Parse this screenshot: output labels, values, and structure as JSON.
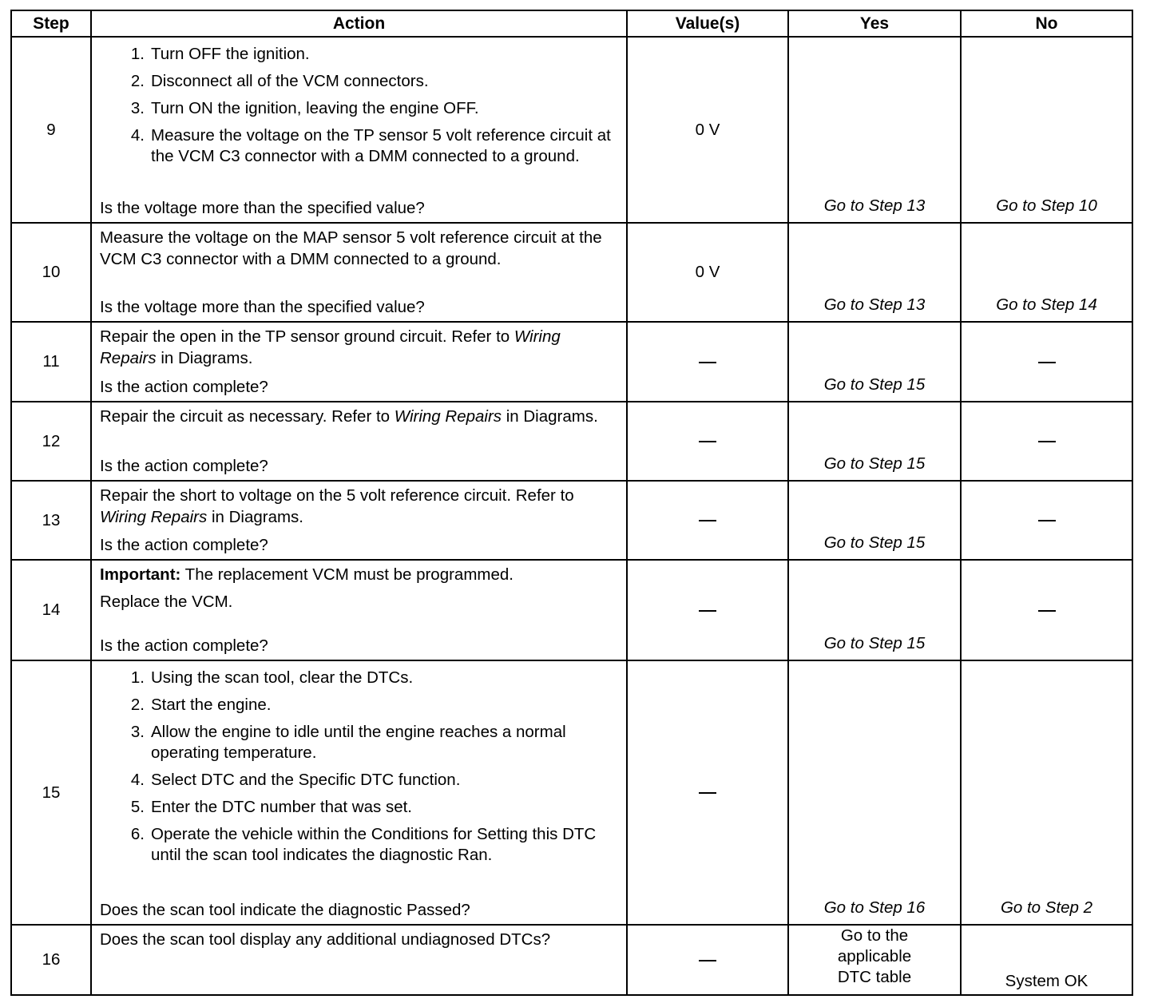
{
  "headers": {
    "step": "Step",
    "action": "Action",
    "values": "Value(s)",
    "yes": "Yes",
    "no": "No"
  },
  "rows": [
    {
      "step": "9",
      "intro": [],
      "steps": [
        "Turn OFF the ignition.",
        "Disconnect all of the VCM connectors.",
        "Turn ON the ignition, leaving the engine OFF.",
        "Measure the voltage on the TP sensor 5 volt reference circuit at the VCM C3 connector with a DMM connected to a ground."
      ],
      "question": "Is the voltage more than the specified value?",
      "value": "0 V",
      "yes": "Go to Step 13",
      "no": "Go to Step 10"
    },
    {
      "step": "10",
      "intro": [
        [
          {
            "t": "Measure the voltage on the MAP sensor 5 volt reference circuit at the VCM C3 connector with a DMM connected to a ground."
          }
        ]
      ],
      "steps": [],
      "question": "Is the voltage more than the specified value?",
      "value": "0 V",
      "yes": "Go to Step 13",
      "no": "Go to Step 14"
    },
    {
      "step": "11",
      "intro": [
        [
          {
            "t": "Repair the open in the TP sensor ground circuit. Refer to "
          },
          {
            "t": "Wiring Repairs",
            "i": true
          },
          {
            "t": " in Diagrams."
          }
        ]
      ],
      "steps": [],
      "question": "Is the action complete?",
      "value": "—",
      "yes": "Go to Step 15",
      "no": "—"
    },
    {
      "step": "12",
      "intro": [
        [
          {
            "t": "Repair the circuit as necessary. Refer to "
          },
          {
            "t": "Wiring Repairs",
            "i": true
          },
          {
            "t": " in Diagrams."
          }
        ]
      ],
      "steps": [],
      "question": "Is the action complete?",
      "value": "—",
      "yes": "Go to Step 15",
      "no": "—"
    },
    {
      "step": "13",
      "intro": [
        [
          {
            "t": "Repair the short to voltage on the 5 volt reference circuit. Refer to "
          },
          {
            "t": "Wiring Repairs",
            "i": true
          },
          {
            "t": " in Diagrams."
          }
        ]
      ],
      "steps": [],
      "question": "Is the action complete?",
      "value": "—",
      "yes": "Go to Step 15",
      "no": "—"
    },
    {
      "step": "14",
      "intro": [
        [
          {
            "t": "Important:",
            "b": true
          },
          {
            "t": " The replacement VCM must be programmed."
          }
        ],
        [
          {
            "t": "Replace the VCM."
          }
        ]
      ],
      "steps": [],
      "question": "Is the action complete?",
      "value": "—",
      "yes": "Go to Step 15",
      "no": "—"
    },
    {
      "step": "15",
      "intro": [],
      "steps": [
        "Using the scan tool, clear the DTCs.",
        "Start the engine.",
        "Allow the engine to idle until the engine reaches a normal operating temperature.",
        "Select DTC and the Specific DTC function.",
        "Enter the DTC number that was set.",
        "Operate the vehicle within the Conditions for Setting this DTC until the scan tool indicates the diagnostic Ran."
      ],
      "question": "Does the scan tool indicate the diagnostic Passed?",
      "value": "—",
      "yes": "Go to Step 16",
      "no": "Go to Step 2"
    },
    {
      "step": "16",
      "intro": [
        [
          {
            "t": "Does the scan tool display any additional undiagnosed DTCs?"
          }
        ]
      ],
      "steps": [],
      "question": "",
      "value": "—",
      "yes": "Go to the applicable DTC table",
      "no": "System OK"
    }
  ]
}
